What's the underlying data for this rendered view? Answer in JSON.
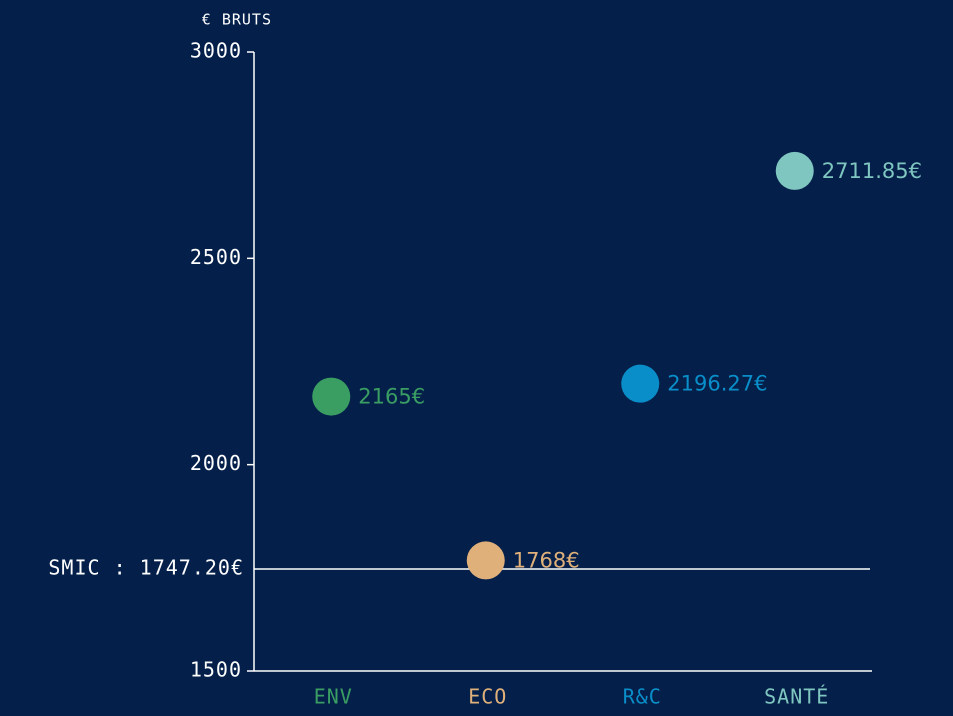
{
  "chart_data": {
    "type": "dot",
    "y_axis_label": "€ BRUTS",
    "categories": [
      "ENV",
      "ECO",
      "R&C",
      "SANTÉ"
    ],
    "values": [
      2165,
      1768,
      2196.27,
      2711.85
    ],
    "value_labels": [
      "2165€",
      "1768€",
      "2196.27€",
      "2711.85€"
    ],
    "colors": [
      "#3a9e63",
      "#e0b07a",
      "#0a8ec9",
      "#7fc6c0"
    ],
    "ylim": [
      1500,
      3000
    ],
    "yticks": [
      1500,
      2000,
      2500,
      3000
    ],
    "reference_line": {
      "value": 1747.2,
      "label": "SMIC : 1747.20€"
    }
  }
}
